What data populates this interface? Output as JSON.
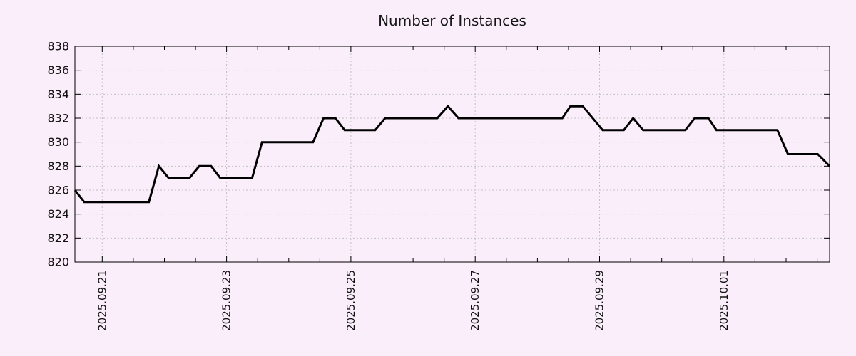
{
  "page": {
    "background": "#faeefa"
  },
  "chart_data": {
    "type": "line",
    "title": "Number of Instances",
    "xlabel": "",
    "ylabel": "",
    "x_unit": "days since 2025-09-20 00:00",
    "x_range": [
      0.56,
      12.7
    ],
    "y_range": [
      820,
      838
    ],
    "y_tick_step": 2,
    "y_tick_labels": [
      "820",
      "822",
      "824",
      "826",
      "828",
      "830",
      "832",
      "834",
      "836",
      "838"
    ],
    "x_major_ticks": [
      {
        "d": 1,
        "label": "2025.09.21"
      },
      {
        "d": 3,
        "label": "2025.09.23"
      },
      {
        "d": 5,
        "label": "2025.09.25"
      },
      {
        "d": 7,
        "label": "2025.09.27"
      },
      {
        "d": 9,
        "label": "2025.09.29"
      },
      {
        "d": 11,
        "label": "2025.10.01"
      }
    ],
    "x_minor_tick_step": 0.5,
    "grid": {
      "horizontal": true,
      "vertical": true,
      "style": "dashed",
      "mirrored_ticks": true
    },
    "legend": "none",
    "colors": {
      "background": "#faeefa",
      "line": "#000000",
      "grid": "#c0c0c0",
      "axis": "#000000",
      "text": "#111111"
    },
    "series": [
      {
        "name": "instances",
        "points": [
          [
            0.56,
            826
          ],
          [
            0.71,
            825
          ],
          [
            1.75,
            825
          ],
          [
            1.91,
            828
          ],
          [
            2.07,
            827
          ],
          [
            2.4,
            827
          ],
          [
            2.56,
            828
          ],
          [
            2.75,
            828
          ],
          [
            2.9,
            827
          ],
          [
            3.41,
            827
          ],
          [
            3.57,
            830
          ],
          [
            4.39,
            830
          ],
          [
            4.56,
            832
          ],
          [
            4.75,
            832
          ],
          [
            4.9,
            831
          ],
          [
            5.39,
            831
          ],
          [
            5.55,
            832
          ],
          [
            6.39,
            832
          ],
          [
            6.56,
            833
          ],
          [
            6.73,
            832
          ],
          [
            8.4,
            832
          ],
          [
            8.53,
            833
          ],
          [
            8.73,
            833
          ],
          [
            9.05,
            831
          ],
          [
            9.39,
            831
          ],
          [
            9.54,
            832
          ],
          [
            9.7,
            831
          ],
          [
            10.38,
            831
          ],
          [
            10.53,
            832
          ],
          [
            10.75,
            832
          ],
          [
            10.88,
            831
          ],
          [
            11.86,
            831
          ],
          [
            12.03,
            829
          ],
          [
            12.51,
            829
          ],
          [
            12.7,
            828
          ]
        ]
      }
    ]
  }
}
